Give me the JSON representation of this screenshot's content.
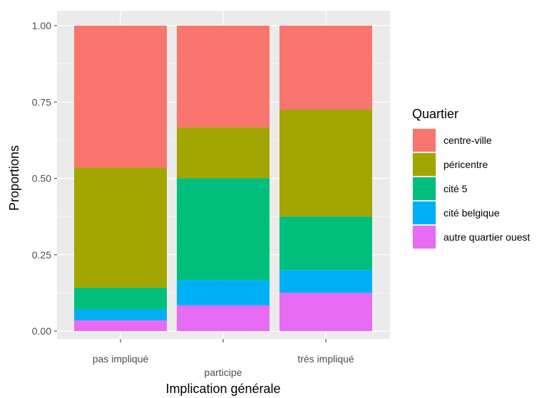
{
  "chart_data": {
    "type": "bar",
    "stacked": true,
    "title": "",
    "xlabel": "Implication  générale",
    "ylabel": "Proportions",
    "ylim": [
      0,
      1
    ],
    "yticks": [
      "0.00",
      "0.25",
      "0.50",
      "0.75",
      "1.00"
    ],
    "yticks_values": [
      0,
      0.25,
      0.5,
      0.75,
      1
    ],
    "grid": true,
    "categories": [
      "pas impliqué",
      "participe",
      "très impliqué"
    ],
    "legend": {
      "title": "Quartier",
      "placement": "right"
    },
    "series": [
      {
        "name": "centre-ville",
        "color": "#F8766D",
        "values": [
          0.465,
          0.333,
          0.275
        ]
      },
      {
        "name": "péricentre",
        "color": "#A3A500",
        "values": [
          0.393,
          0.167,
          0.35
        ]
      },
      {
        "name": "cité 5",
        "color": "#00BF7D",
        "values": [
          0.071,
          0.333,
          0.175
        ]
      },
      {
        "name": "cité belgique",
        "color": "#00B0F6",
        "values": [
          0.036,
          0.083,
          0.075
        ]
      },
      {
        "name": "autre quartier ouest",
        "color": "#E76BF3",
        "values": [
          0.035,
          0.084,
          0.125
        ]
      }
    ]
  }
}
